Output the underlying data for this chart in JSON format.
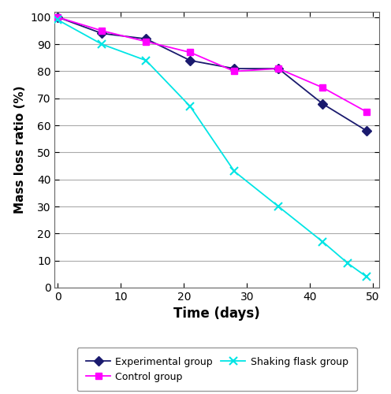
{
  "experimental_group": {
    "x": [
      0,
      7,
      14,
      21,
      28,
      35,
      42,
      49
    ],
    "y": [
      100,
      94,
      92,
      84,
      81,
      81,
      68,
      58
    ],
    "color": "#1a1a6e",
    "marker": "D",
    "label": "Experimental group",
    "markersize": 6,
    "linewidth": 1.3
  },
  "control_group": {
    "x": [
      0,
      7,
      14,
      21,
      28,
      35,
      42,
      49
    ],
    "y": [
      100,
      95,
      91,
      87,
      80,
      81,
      74,
      65
    ],
    "color": "#ff00ff",
    "marker": "s",
    "label": "Control group",
    "markersize": 6,
    "linewidth": 1.3
  },
  "shaking_flask_group": {
    "x": [
      0,
      7,
      14,
      21,
      28,
      35,
      42,
      46,
      49
    ],
    "y": [
      99,
      90,
      84,
      67,
      43,
      30,
      17,
      9,
      4
    ],
    "color": "#00e5e5",
    "marker": "x",
    "label": "Shaking flask group",
    "markersize": 7,
    "linewidth": 1.3
  },
  "xlabel": "Time (days)",
  "ylabel": "Mass loss ratio (%)",
  "xlim": [
    -0.5,
    51
  ],
  "ylim": [
    0,
    102
  ],
  "xticks": [
    0,
    10,
    20,
    30,
    40,
    50
  ],
  "yticks": [
    0,
    10,
    20,
    30,
    40,
    50,
    60,
    70,
    80,
    90,
    100
  ],
  "grid_color": "#aaaaaa",
  "bg_color": "#ffffff",
  "spine_color": "#666666"
}
